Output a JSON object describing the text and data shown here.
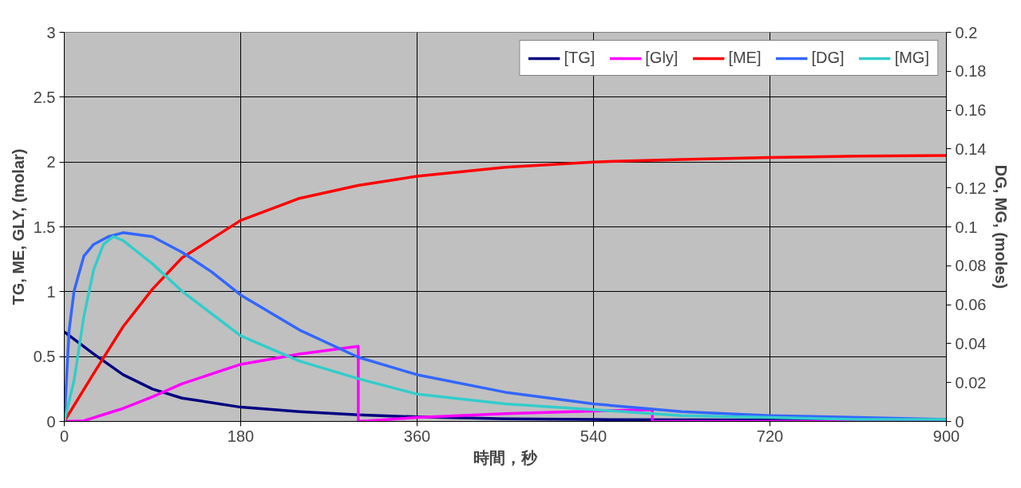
{
  "chart_data": {
    "type": "line",
    "xlabel": "時間，秒",
    "ylabel": "TG, ME, GLY, (molar)",
    "y2label": "DG, MG, (moles)",
    "xlim": [
      0,
      900
    ],
    "xticks": [
      0,
      180,
      360,
      540,
      720,
      900
    ],
    "ylim": [
      0,
      3
    ],
    "yticks": [
      0,
      0.5,
      1,
      1.5,
      2,
      2.5,
      3
    ],
    "y2lim": [
      0,
      0.2
    ],
    "y2ticks": [
      0,
      0.02,
      0.04,
      0.06,
      0.08,
      0.1,
      0.12,
      0.14,
      0.16,
      0.18,
      0.2
    ],
    "grid": true,
    "legend": "top right",
    "marker": "none",
    "line_style": "solid",
    "series": [
      {
        "name": "[TG]",
        "color": "#000080",
        "x": [
          0,
          30,
          60,
          90,
          120,
          180,
          240,
          300,
          360,
          450,
          540,
          720,
          900
        ],
        "values": [
          0.69,
          0.52,
          0.36,
          0.25,
          0.18,
          0.11,
          0.075,
          0.05,
          0.035,
          0.02,
          0.015,
          0.01,
          0.005
        ]
      },
      {
        "name": "[Gly]",
        "color": "#ff00ff",
        "x": [
          0,
          20,
          60,
          90,
          120,
          180,
          240,
          300,
          300,
          360,
          450,
          540,
          600,
          600,
          900
        ],
        "values": [
          0,
          0.005,
          0.1,
          0.19,
          0.29,
          0.44,
          0.52,
          0.58,
          0,
          0.03,
          0.06,
          0.08,
          0.09,
          0,
          0
        ]
      },
      {
        "name": "[ME]",
        "color": "#ff0000",
        "x": [
          0,
          30,
          60,
          90,
          120,
          180,
          240,
          300,
          360,
          450,
          540,
          630,
          720,
          810,
          900
        ],
        "values": [
          0,
          0.37,
          0.73,
          1.02,
          1.26,
          1.55,
          1.72,
          1.82,
          1.89,
          1.96,
          2.0,
          2.02,
          2.035,
          2.045,
          2.05
        ]
      },
      {
        "name": "[DG]",
        "color": "#3366ff",
        "axis": "y2",
        "x": [
          0,
          5,
          10,
          20,
          30,
          45,
          60,
          90,
          120,
          150,
          180,
          240,
          300,
          360,
          450,
          540,
          630,
          720,
          810,
          900
        ],
        "values": [
          0,
          0.047,
          0.067,
          0.085,
          0.091,
          0.095,
          0.097,
          0.095,
          0.087,
          0.077,
          0.065,
          0.047,
          0.033,
          0.024,
          0.015,
          0.009,
          0.005,
          0.003,
          0.002,
          0.001
        ]
      },
      {
        "name": "[MG]",
        "color": "#33cccc",
        "axis": "y2",
        "x": [
          0,
          10,
          20,
          30,
          40,
          50,
          60,
          90,
          120,
          180,
          240,
          300,
          360,
          450,
          540,
          630,
          720,
          810,
          900
        ],
        "values": [
          0,
          0.021,
          0.054,
          0.078,
          0.091,
          0.095,
          0.093,
          0.081,
          0.067,
          0.044,
          0.031,
          0.022,
          0.014,
          0.009,
          0.006,
          0.003,
          0.002,
          0.001,
          0.001
        ]
      }
    ]
  }
}
